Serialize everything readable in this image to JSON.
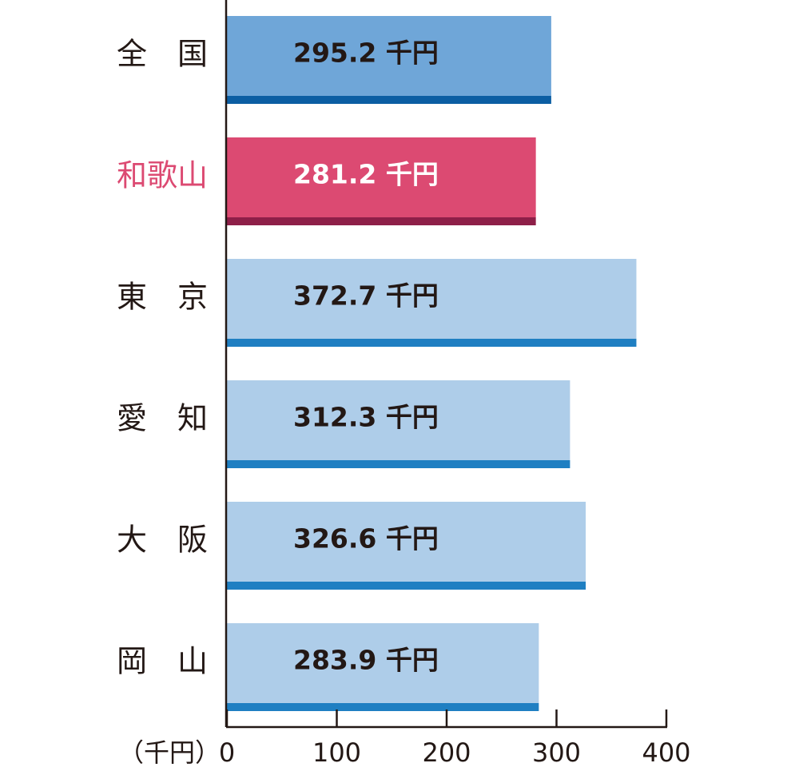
{
  "chart_data": {
    "type": "bar",
    "orientation": "horizontal",
    "categories": [
      "全　国",
      "和歌山",
      "東　京",
      "愛　知",
      "大　阪",
      "岡　山"
    ],
    "values": [
      295.2,
      281.2,
      372.7,
      312.3,
      326.6,
      283.9
    ],
    "value_labels": [
      "295.2 千円",
      "281.2 千円",
      "372.7 千円",
      "312.3 千円",
      "326.6 千円",
      "283.9 千円"
    ],
    "colors": [
      "#6fa6d8",
      "#dc4a72",
      "#aecde9",
      "#aecde9",
      "#aecde9",
      "#aecde9"
    ],
    "edge_colors": [
      "#0c5ea3",
      "#8e1f48",
      "#1f7fc2",
      "#1f7fc2",
      "#1f7fc2",
      "#1f7fc2"
    ],
    "category_colors": [
      "#231815",
      "#dc4a72",
      "#231815",
      "#231815",
      "#231815",
      "#231815"
    ],
    "value_label_colors": [
      "#231815",
      "#ffffff",
      "#231815",
      "#231815",
      "#231815",
      "#231815"
    ],
    "x_unit": "（千円）",
    "xlim": [
      0,
      400
    ],
    "xticks": [
      0,
      100,
      200,
      300,
      400
    ]
  }
}
